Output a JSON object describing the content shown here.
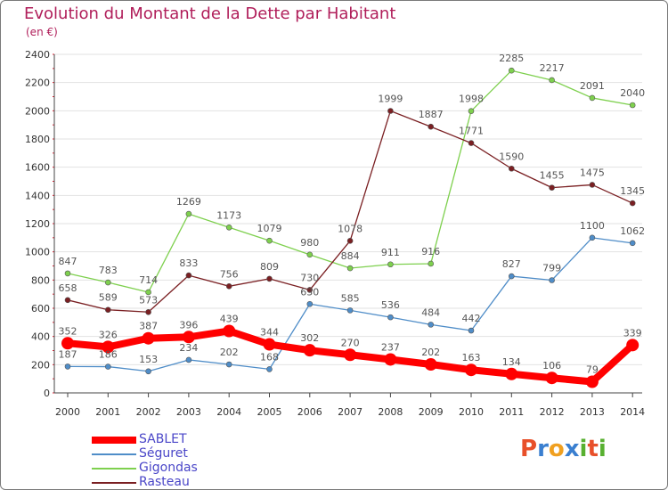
{
  "chart_data": {
    "type": "line",
    "title": "Evolution du Montant de la Dette par Habitant",
    "subtitle": "(en €)",
    "xlabel": "",
    "ylabel": "",
    "ylim": [
      0,
      2400
    ],
    "ytick_labels": [
      "0",
      "200",
      "400",
      "600",
      "800",
      "1000",
      "1200",
      "1400",
      "1600",
      "1800",
      "2000",
      "2200",
      "2400"
    ],
    "categories": [
      "2000",
      "2001",
      "2002",
      "2003",
      "2004",
      "2005",
      "2006",
      "2007",
      "2008",
      "2009",
      "2010",
      "2011",
      "2012",
      "2013",
      "2014"
    ],
    "series": [
      {
        "name": "SABLET",
        "color": "#ff0000",
        "values": [
          352,
          326,
          387,
          396,
          439,
          344,
          302,
          270,
          237,
          202,
          163,
          134,
          106,
          79,
          339
        ]
      },
      {
        "name": "Séguret",
        "color": "#4f8dc8",
        "values": [
          187,
          186,
          153,
          234,
          202,
          168,
          630,
          585,
          536,
          484,
          442,
          827,
          799,
          1100,
          1062
        ]
      },
      {
        "name": "Gigondas",
        "color": "#7ed04e",
        "values": [
          847,
          783,
          714,
          1269,
          1173,
          1079,
          980,
          884,
          911,
          916,
          1998,
          2285,
          2217,
          2091,
          2040
        ]
      },
      {
        "name": "Rasteau",
        "color": "#7a1f22",
        "values": [
          658,
          589,
          573,
          833,
          756,
          809,
          730,
          1078,
          1999,
          1887,
          1771,
          1590,
          1455,
          1475,
          1345
        ]
      }
    ],
    "legend_position": "bottom-left",
    "grid": true
  },
  "logo": {
    "letters": [
      "P",
      "r",
      "o",
      "x",
      "i",
      "t",
      "i"
    ],
    "colors": [
      "#e8502a",
      "#3a7fd0",
      "#f0a020",
      "#3a7fd0",
      "#58b030",
      "#e8502a",
      "#58b030"
    ]
  }
}
